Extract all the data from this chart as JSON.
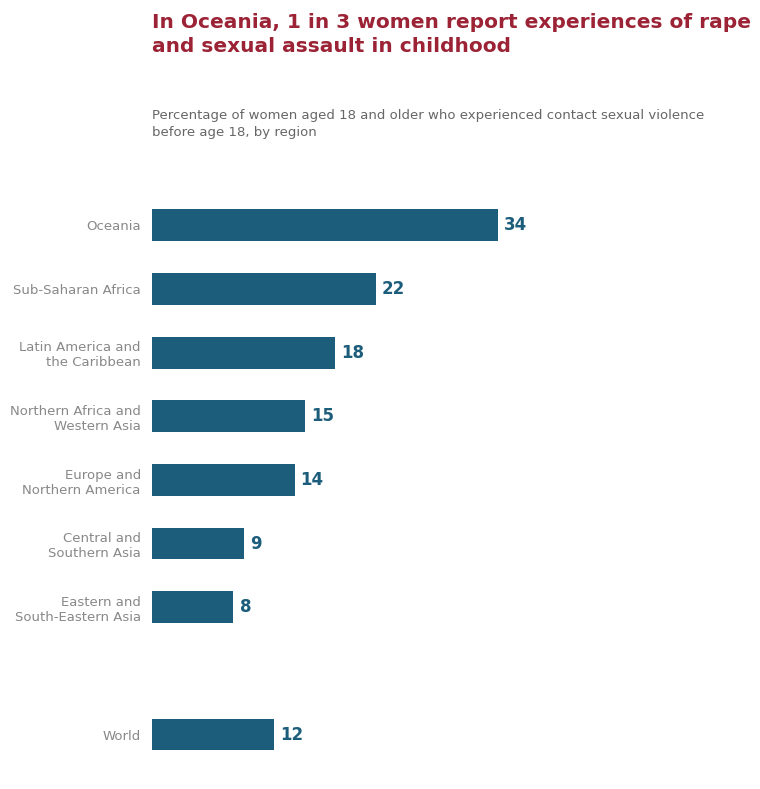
{
  "title_line1": "In Oceania, 1 in 3 women report experiences of rape",
  "title_line2": "and sexual assault in childhood",
  "subtitle": "Percentage of women aged 18 and older who experienced contact sexual violence\nbefore age 18, by region",
  "categories": [
    "Oceania",
    "Sub-Saharan Africa",
    "Latin America and\nthe Caribbean",
    "Northern Africa and\nWestern Asia",
    "Europe and\nNorthern America",
    "Central and\nSouthern Asia",
    "Eastern and\nSouth-Eastern Asia",
    "",
    "World"
  ],
  "values": [
    34,
    22,
    18,
    15,
    14,
    9,
    8,
    0,
    12
  ],
  "bar_color": "#1b5d7a",
  "value_color": "#1b5d7a",
  "title_color": "#9b2335",
  "subtitle_color": "#666666",
  "label_color": "#888888",
  "background_color": "#ffffff",
  "bar_height": 0.5,
  "xlim": [
    0,
    44
  ],
  "title_fontsize": 14.5,
  "subtitle_fontsize": 9.5,
  "value_fontsize": 12,
  "label_fontsize": 9.5
}
